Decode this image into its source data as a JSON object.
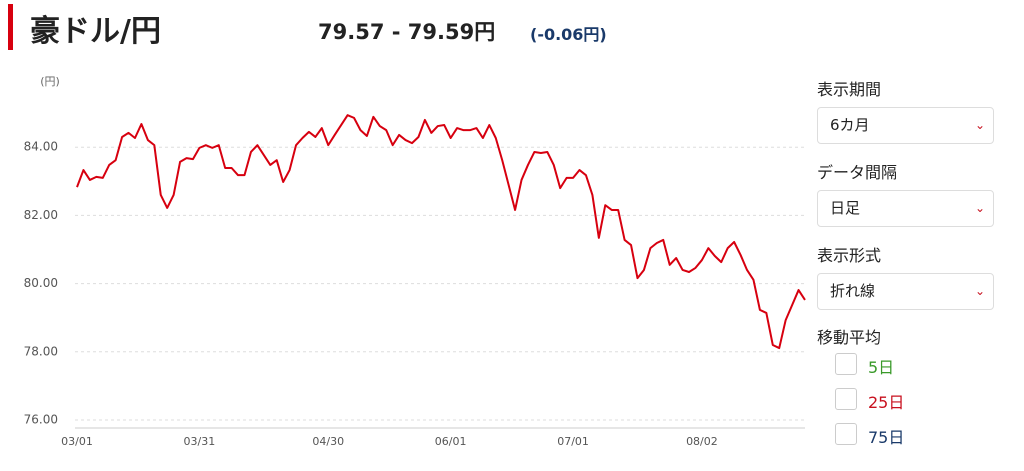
{
  "header": {
    "title": "豪ドル/円",
    "price": "79.57 - 79.59円",
    "change": "(-0.06円)"
  },
  "chart_data": {
    "type": "line",
    "y_label": "(円)",
    "categories": [
      "03/01",
      null,
      null,
      null,
      null,
      null,
      null,
      null,
      null,
      null,
      null,
      null,
      null,
      null,
      null,
      null,
      null,
      null,
      null,
      "03/31",
      null,
      null,
      null,
      null,
      null,
      null,
      null,
      null,
      null,
      null,
      null,
      null,
      null,
      null,
      null,
      null,
      null,
      null,
      null,
      "04/30",
      null,
      null,
      null,
      null,
      null,
      null,
      null,
      null,
      null,
      null,
      null,
      null,
      null,
      null,
      null,
      null,
      null,
      null,
      "06/01",
      null,
      null,
      null,
      null,
      null,
      null,
      null,
      null,
      null,
      null,
      null,
      null,
      null,
      null,
      null,
      null,
      null,
      null,
      "07/01",
      null,
      null,
      null,
      null,
      null,
      null,
      null,
      null,
      null,
      null,
      null,
      null,
      null,
      null,
      null,
      null,
      null,
      null,
      null,
      "08/02",
      null,
      null,
      null,
      null,
      null,
      null,
      null,
      null,
      null,
      null,
      null,
      null,
      null,
      null,
      null,
      null
    ],
    "series": [
      {
        "name": "豪ドル/円",
        "color": "#d7000f",
        "values": [
          82.83,
          83.33,
          83.04,
          83.13,
          83.1,
          83.48,
          83.62,
          84.3,
          84.42,
          84.27,
          84.68,
          84.21,
          84.06,
          82.6,
          82.22,
          82.6,
          83.57,
          83.68,
          83.65,
          83.98,
          84.06,
          83.98,
          84.06,
          83.39,
          83.39,
          83.18,
          83.18,
          83.86,
          84.06,
          83.77,
          83.48,
          83.62,
          82.98,
          83.33,
          84.06,
          84.27,
          84.45,
          84.3,
          84.56,
          84.06,
          84.36,
          84.65,
          84.94,
          84.86,
          84.5,
          84.33,
          84.89,
          84.62,
          84.5,
          84.06,
          84.36,
          84.21,
          84.12,
          84.3,
          84.8,
          84.42,
          84.62,
          84.65,
          84.27,
          84.56,
          84.5,
          84.5,
          84.56,
          84.27,
          84.65,
          84.27,
          83.62,
          82.89,
          82.16,
          83.04,
          83.48,
          83.86,
          83.83,
          83.86,
          83.48,
          82.8,
          83.1,
          83.1,
          83.33,
          83.18,
          82.6,
          81.34,
          82.3,
          82.16,
          82.16,
          81.28,
          81.13,
          80.16,
          80.4,
          81.04,
          81.19,
          81.28,
          80.55,
          80.75,
          80.4,
          80.34,
          80.46,
          80.69,
          81.04,
          80.81,
          80.63,
          81.04,
          81.22,
          80.84,
          80.4,
          80.11,
          79.23,
          79.14,
          78.2,
          78.11,
          78.93,
          79.37,
          79.81,
          79.52
        ]
      }
    ],
    "ylim": [
      76,
      86
    ],
    "yticks": [
      {
        "value": 76,
        "label": "76.00"
      },
      {
        "value": 78,
        "label": "78.00"
      },
      {
        "value": 80,
        "label": "80.00"
      },
      {
        "value": 82,
        "label": "82.00"
      },
      {
        "value": 84,
        "label": "84.00"
      }
    ],
    "grid": true
  },
  "controls": {
    "period": {
      "label": "表示期間",
      "value": "6カ月"
    },
    "interval": {
      "label": "データ間隔",
      "value": "日足"
    },
    "display": {
      "label": "表示形式",
      "value": "折れ線"
    },
    "moving_average": {
      "label": "移動平均",
      "options": [
        {
          "text": "5日",
          "color": "#3a9a2a"
        },
        {
          "text": "25日",
          "color": "#c8101e"
        },
        {
          "text": "75日",
          "color": "#1a3a6a"
        }
      ]
    }
  }
}
